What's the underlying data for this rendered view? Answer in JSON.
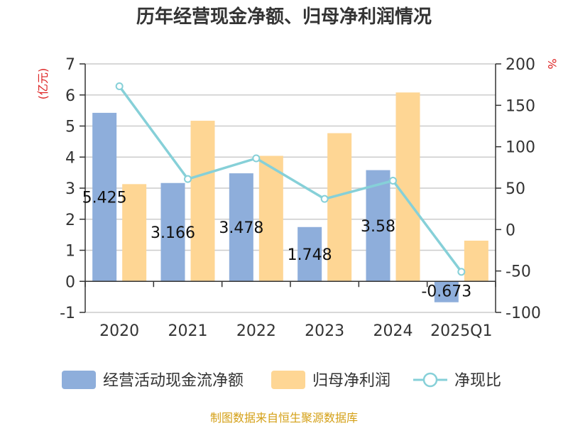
{
  "chart_data": {
    "type": "bar",
    "title": "历年经营现金净额、归母净利润情况",
    "categories": [
      "2020",
      "2021",
      "2022",
      "2023",
      "2024",
      "2025Q1"
    ],
    "series": [
      {
        "name": "经营活动现金流净额",
        "axis": "left",
        "kind": "bar",
        "values": [
          5.425,
          3.166,
          3.478,
          1.748,
          3.58,
          -0.673
        ],
        "labels": [
          "5.425",
          "3.166",
          "3.478",
          "1.748",
          "3.58",
          "-0.673"
        ]
      },
      {
        "name": "归母净利润",
        "axis": "left",
        "kind": "bar",
        "values": [
          3.13,
          5.17,
          4.04,
          4.77,
          6.08,
          1.31
        ]
      },
      {
        "name": "净现比",
        "axis": "right",
        "kind": "line",
        "values": [
          173,
          61,
          86,
          37,
          59,
          -51
        ]
      }
    ],
    "y_left": {
      "unit": "(亿元)",
      "ylim": [
        -1,
        7
      ],
      "ticks": [
        "-1",
        "0",
        "1",
        "2",
        "3",
        "4",
        "5",
        "6",
        "7"
      ]
    },
    "y_right": {
      "unit": "%",
      "ylim": [
        -100,
        200
      ],
      "ticks": [
        "-100",
        "-50",
        "0",
        "50",
        "100",
        "150",
        "200"
      ]
    },
    "grid": true,
    "legend_position": "bottom",
    "source": "制图数据来自恒生聚源数据库"
  },
  "colors": {
    "bar1": "#8eaedb",
    "bar2": "#fed694",
    "line": "#86d0d8",
    "unit": "#dd2222",
    "source": "#d4a017",
    "grid": "#cccccc",
    "axis": "#333333"
  }
}
